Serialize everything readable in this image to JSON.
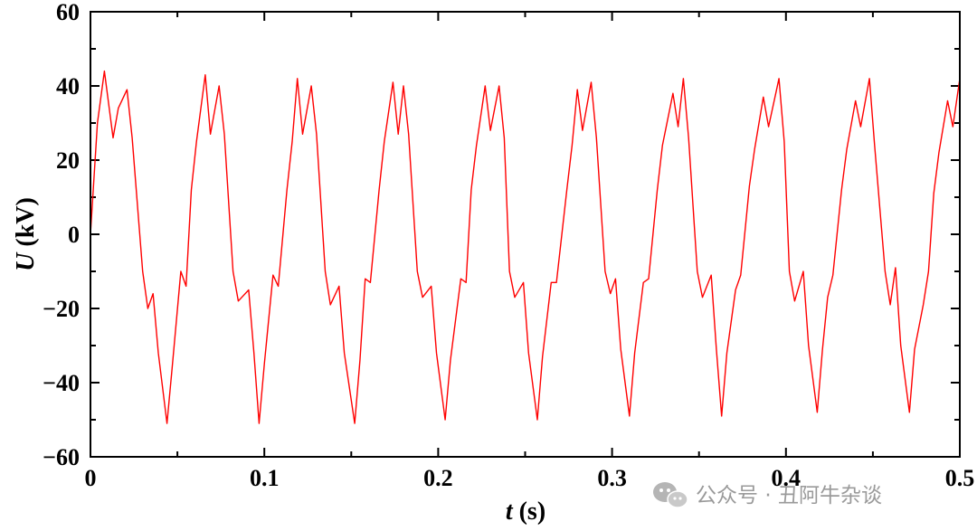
{
  "chart_data": {
    "type": "line",
    "xlabel_var": "t",
    "xlabel_unit": "(s)",
    "ylabel_var": "U",
    "ylabel_unit": "(kV)",
    "xlim": [
      0,
      0.5
    ],
    "ylim": [
      -60,
      60
    ],
    "xticks": [
      0,
      0.1,
      0.2,
      0.3,
      0.4,
      0.5
    ],
    "xtick_labels": [
      "0",
      "0.1",
      "0.2",
      "0.3",
      "0.4",
      "0.5"
    ],
    "yticks": [
      -60,
      -40,
      -20,
      0,
      20,
      40,
      60
    ],
    "ytick_labels": [
      "−60",
      "−40",
      "−20",
      "0",
      "20",
      "40",
      "60"
    ],
    "grid": false,
    "series": [
      {
        "color": "#ff0000",
        "x": [
          0.0,
          0.004,
          0.008,
          0.013,
          0.016,
          0.021,
          0.024,
          0.03,
          0.033,
          0.036,
          0.039,
          0.044,
          0.047,
          0.052,
          0.055,
          0.058,
          0.061,
          0.066,
          0.069,
          0.074,
          0.077,
          0.082,
          0.085,
          0.091,
          0.094,
          0.097,
          0.1,
          0.105,
          0.108,
          0.113,
          0.116,
          0.119,
          0.122,
          0.127,
          0.13,
          0.135,
          0.138,
          0.143,
          0.146,
          0.152,
          0.155,
          0.158,
          0.161,
          0.166,
          0.169,
          0.174,
          0.177,
          0.18,
          0.183,
          0.188,
          0.191,
          0.196,
          0.199,
          0.204,
          0.207,
          0.213,
          0.216,
          0.219,
          0.222,
          0.227,
          0.23,
          0.235,
          0.238,
          0.241,
          0.244,
          0.249,
          0.252,
          0.257,
          0.26,
          0.265,
          0.268,
          0.274,
          0.277,
          0.28,
          0.283,
          0.288,
          0.291,
          0.296,
          0.299,
          0.302,
          0.305,
          0.31,
          0.313,
          0.318,
          0.321,
          0.326,
          0.329,
          0.335,
          0.338,
          0.341,
          0.344,
          0.349,
          0.352,
          0.357,
          0.36,
          0.363,
          0.366,
          0.371,
          0.374,
          0.379,
          0.382,
          0.387,
          0.39,
          0.396,
          0.399,
          0.402,
          0.405,
          0.41,
          0.413,
          0.418,
          0.421,
          0.424,
          0.427,
          0.432,
          0.435,
          0.44,
          0.443,
          0.448,
          0.451,
          0.457,
          0.46,
          0.463,
          0.466,
          0.471,
          0.474,
          0.479,
          0.482,
          0.485,
          0.488,
          0.493,
          0.496,
          0.5
        ],
        "y": [
          0,
          30,
          44,
          26,
          34,
          39,
          26,
          -10,
          -20,
          -16,
          -32,
          -51,
          -36,
          -10,
          -14,
          12,
          25,
          43,
          27,
          40,
          27,
          -10,
          -18,
          -15,
          -32,
          -51,
          -35,
          -11,
          -14,
          12,
          25,
          42,
          27,
          40,
          27,
          -10,
          -19,
          -14,
          -32,
          -51,
          -34,
          -12,
          -13,
          12,
          25,
          41,
          27,
          40,
          27,
          -10,
          -17,
          -14,
          -32,
          -50,
          -34,
          -12,
          -13,
          12,
          24,
          40,
          28,
          40,
          26,
          -10,
          -17,
          -13,
          -32,
          -50,
          -33,
          -13,
          -13,
          12,
          24,
          39,
          28,
          41,
          26,
          -10,
          -16,
          -12,
          -31,
          -49,
          -32,
          -13,
          -12,
          12,
          24,
          38,
          29,
          42,
          26,
          -10,
          -17,
          -11,
          -31,
          -49,
          -32,
          -15,
          -11,
          13,
          23,
          37,
          29,
          42,
          25,
          -10,
          -18,
          -10,
          -30,
          -48,
          -31,
          -17,
          -11,
          12,
          23,
          36,
          29,
          42,
          24,
          -10,
          -19,
          -9,
          -30,
          -48,
          -31,
          -19,
          -10,
          11,
          22,
          36,
          29,
          42
        ]
      }
    ]
  },
  "watermark": {
    "brand": "公众号",
    "separator": "·",
    "name": "丑阿牛杂谈"
  }
}
